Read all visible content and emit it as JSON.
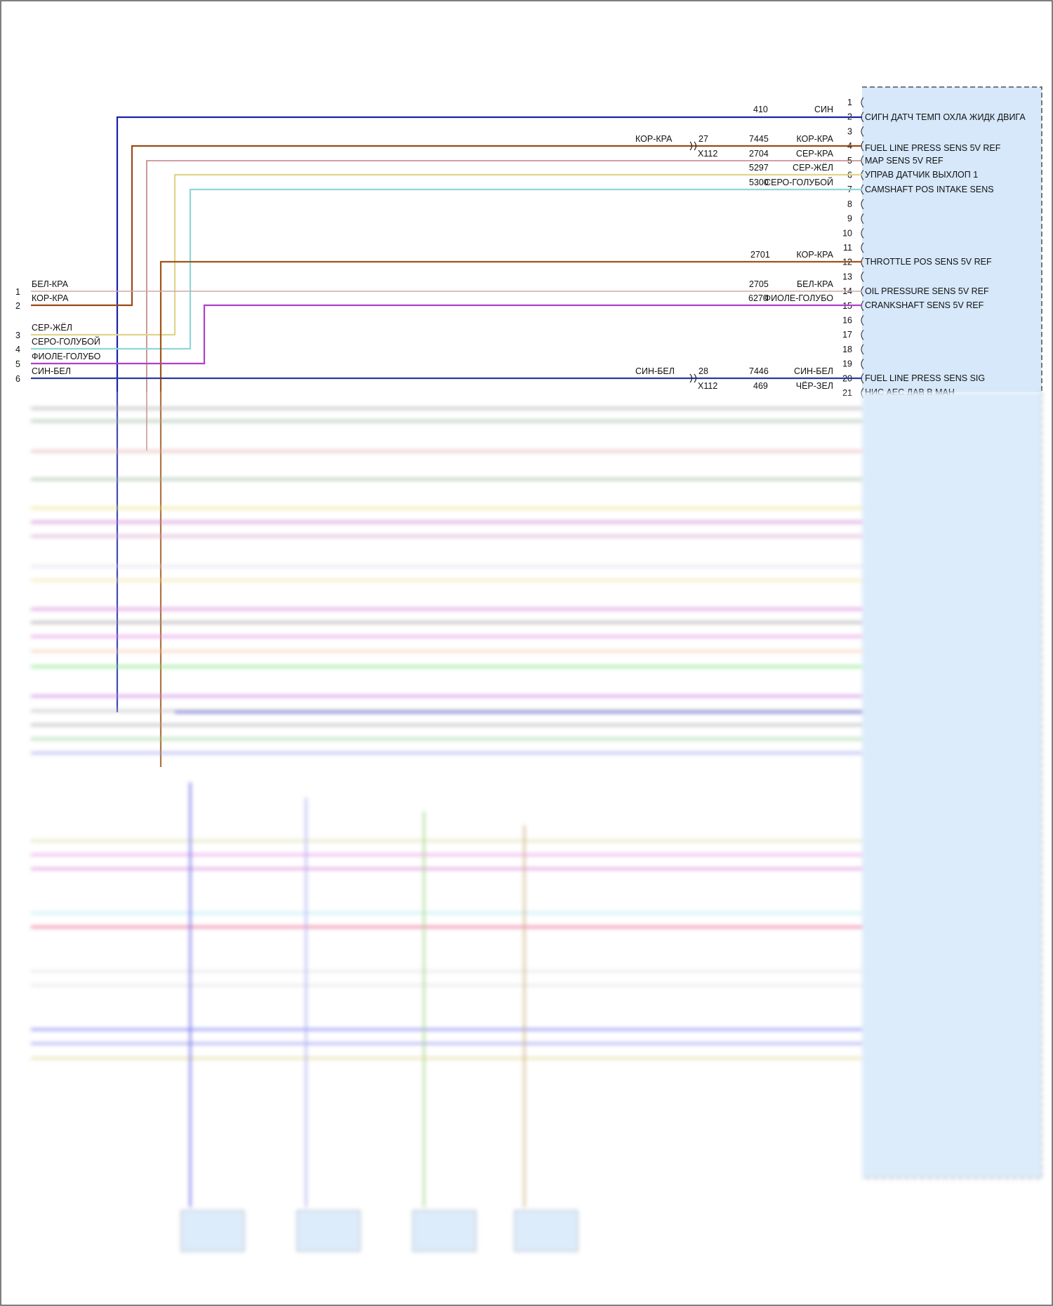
{
  "module": {
    "pins_top": [
      "1",
      "2",
      "3",
      "4",
      "5",
      "6",
      "7",
      "8",
      "9",
      "10",
      "11",
      "12",
      "13",
      "14",
      "15",
      "16",
      "17",
      "18",
      "19",
      "20",
      "21"
    ],
    "labels": [
      {
        "pin": "2",
        "text": "СИГН ДАТЧ ТЕМП ОХЛА ЖИДК ДВИГА"
      },
      {
        "pin": "4",
        "text": "FUEL LINE PRESS SENS 5V REF"
      },
      {
        "pin": "5",
        "text": "MAP SENS 5V REF"
      },
      {
        "pin": "6",
        "text": "УПРАВ ДАТЧИК ВЫХЛОП 1"
      },
      {
        "pin": "7",
        "text": "CAMSHAFT POS INTAKE SENS"
      },
      {
        "pin": "12",
        "text": "THROTTLE POS SENS 5V REF"
      },
      {
        "pin": "14",
        "text": "OIL PRESSURE SENS 5V REF"
      },
      {
        "pin": "15",
        "text": "CRANKSHAFT SENS 5V REF"
      },
      {
        "pin": "20",
        "text": "FUEL LINE PRESS SENS SIG"
      },
      {
        "pin": "21",
        "text": "НИС АЕС ДАВ В МАН"
      }
    ]
  },
  "wires": [
    {
      "pin": "2",
      "circuit": "410",
      "color_name": "СИН",
      "color": "#1c22a8"
    },
    {
      "pin": "4",
      "circuit": "7445",
      "color_name": "КОР-КРА",
      "color": "#9a4a14",
      "inline_color": "КОР-КРА",
      "inline_pin": "27"
    },
    {
      "pin": "5",
      "circuit": "2704",
      "color_name": "СЕР-КРА",
      "color": "#c08080",
      "inline_connector": "X112"
    },
    {
      "pin": "6",
      "circuit": "5297",
      "color_name": "СЕР-ЖЁЛ",
      "color": "#e0d48a"
    },
    {
      "pin": "7",
      "circuit": "5300",
      "color_name": "СЕРО-ГОЛУБОЙ",
      "color": "#8fd6dc"
    },
    {
      "pin": "12",
      "circuit": "2701",
      "color_name": "КОР-КРА",
      "color": "#a05418"
    },
    {
      "pin": "14",
      "circuit": "2705",
      "color_name": "БЕЛ-КРА",
      "color": "#d0a8a8"
    },
    {
      "pin": "15",
      "circuit": "6270",
      "color_name": "ФИОЛЕ-ГОЛУБО",
      "color": "#b040c8"
    },
    {
      "pin": "20",
      "circuit": "7446",
      "color_name": "СИН-БЕЛ",
      "color": "#2a3aa0",
      "inline_color": "СИН-БЕЛ",
      "inline_pin": "28"
    },
    {
      "pin": "21",
      "circuit": "469",
      "color_name": "ЧЁР-ЗЕЛ",
      "color": "#444444",
      "inline_connector": "X112"
    }
  ],
  "left_terminals": [
    {
      "num": "1",
      "label": "БЕЛ-КРА"
    },
    {
      "num": "2",
      "label": "КОР-КРА"
    },
    {
      "num": "3",
      "label": "СЕР-ЖЁЛ"
    },
    {
      "num": "4",
      "label": "СЕРО-ГОЛУБОЙ"
    },
    {
      "num": "5",
      "label": "ФИОЛЕ-ГОЛУБО"
    },
    {
      "num": "6",
      "label": "СИН-БЕЛ"
    }
  ]
}
